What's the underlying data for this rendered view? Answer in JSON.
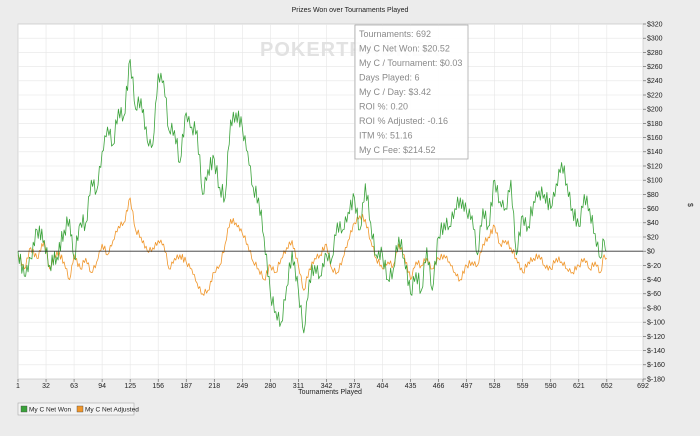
{
  "chart_data": {
    "type": "line",
    "title": "Prizes Won over Tournaments Played",
    "xlabel": "Tournaments Played",
    "ylabel": "$",
    "xlim": [
      1,
      692
    ],
    "ylim": [
      -180,
      320
    ],
    "x_ticks": [
      1,
      32,
      63,
      94,
      125,
      156,
      187,
      218,
      249,
      280,
      311,
      342,
      373,
      404,
      435,
      466,
      497,
      528,
      559,
      590,
      621,
      652,
      692
    ],
    "y_ticks": [
      {
        "v": 320,
        "label": "$320"
      },
      {
        "v": 300,
        "label": "$300"
      },
      {
        "v": 280,
        "label": "$280"
      },
      {
        "v": 260,
        "label": "$260"
      },
      {
        "v": 240,
        "label": "$240"
      },
      {
        "v": 220,
        "label": "$220"
      },
      {
        "v": 200,
        "label": "$200"
      },
      {
        "v": 180,
        "label": "$180"
      },
      {
        "v": 160,
        "label": "$160"
      },
      {
        "v": 140,
        "label": "$140"
      },
      {
        "v": 120,
        "label": "$120"
      },
      {
        "v": 100,
        "label": "$100"
      },
      {
        "v": 80,
        "label": "$80"
      },
      {
        "v": 60,
        "label": "$60"
      },
      {
        "v": 40,
        "label": "$40"
      },
      {
        "v": 20,
        "label": "$20"
      },
      {
        "v": 0,
        "label": "$0"
      },
      {
        "v": -20,
        "label": "$-20"
      },
      {
        "v": -40,
        "label": "$-40"
      },
      {
        "v": -60,
        "label": "$-60"
      },
      {
        "v": -80,
        "label": "$-80"
      },
      {
        "v": -100,
        "label": "$-100"
      },
      {
        "v": -120,
        "label": "$-120"
      },
      {
        "v": -140,
        "label": "$-140"
      },
      {
        "v": -160,
        "label": "$-160"
      },
      {
        "v": -180,
        "label": "$-180"
      }
    ],
    "grid": true,
    "legend_position": "bottom-left",
    "series": [
      {
        "name": "My C Net Won",
        "color": "#3aa23a",
        "points": [
          [
            1,
            0
          ],
          [
            8,
            -35
          ],
          [
            15,
            -10
          ],
          [
            22,
            30
          ],
          [
            30,
            15
          ],
          [
            36,
            -20
          ],
          [
            44,
            -8
          ],
          [
            52,
            30
          ],
          [
            58,
            45
          ],
          [
            63,
            -10
          ],
          [
            70,
            40
          ],
          [
            76,
            40
          ],
          [
            82,
            100
          ],
          [
            88,
            85
          ],
          [
            94,
            140
          ],
          [
            100,
            175
          ],
          [
            106,
            150
          ],
          [
            112,
            200
          ],
          [
            118,
            190
          ],
          [
            125,
            270
          ],
          [
            131,
            200
          ],
          [
            137,
            215
          ],
          [
            144,
            155
          ],
          [
            150,
            150
          ],
          [
            156,
            250
          ],
          [
            162,
            240
          ],
          [
            168,
            170
          ],
          [
            174,
            170
          ],
          [
            180,
            125
          ],
          [
            187,
            195
          ],
          [
            193,
            175
          ],
          [
            199,
            170
          ],
          [
            205,
            80
          ],
          [
            211,
            115
          ],
          [
            218,
            130
          ],
          [
            224,
            90
          ],
          [
            230,
            75
          ],
          [
            236,
            185
          ],
          [
            242,
            195
          ],
          [
            249,
            175
          ],
          [
            255,
            140
          ],
          [
            261,
            90
          ],
          [
            267,
            75
          ],
          [
            273,
            20
          ],
          [
            280,
            -60
          ],
          [
            286,
            -85
          ],
          [
            292,
            -100
          ],
          [
            298,
            -50
          ],
          [
            304,
            0
          ],
          [
            311,
            -55
          ],
          [
            317,
            -115
          ],
          [
            323,
            -40
          ],
          [
            329,
            -20
          ],
          [
            335,
            -35
          ],
          [
            342,
            -5
          ],
          [
            348,
            -10
          ],
          [
            354,
            40
          ],
          [
            360,
            30
          ],
          [
            366,
            55
          ],
          [
            373,
            75
          ],
          [
            379,
            30
          ],
          [
            385,
            95
          ],
          [
            391,
            40
          ],
          [
            397,
            -5
          ],
          [
            404,
            -5
          ],
          [
            410,
            -40
          ],
          [
            416,
            -25
          ],
          [
            422,
            20
          ],
          [
            428,
            -10
          ],
          [
            435,
            -60
          ],
          [
            441,
            -30
          ],
          [
            447,
            -55
          ],
          [
            453,
            5
          ],
          [
            459,
            -55
          ],
          [
            466,
            20
          ],
          [
            472,
            40
          ],
          [
            478,
            35
          ],
          [
            484,
            60
          ],
          [
            490,
            75
          ],
          [
            497,
            55
          ],
          [
            503,
            50
          ],
          [
            509,
            -5
          ],
          [
            515,
            60
          ],
          [
            521,
            35
          ],
          [
            528,
            100
          ],
          [
            534,
            70
          ],
          [
            540,
            60
          ],
          [
            546,
            100
          ],
          [
            552,
            -5
          ],
          [
            559,
            50
          ],
          [
            565,
            35
          ],
          [
            571,
            70
          ],
          [
            577,
            85
          ],
          [
            583,
            80
          ],
          [
            590,
            60
          ],
          [
            596,
            95
          ],
          [
            602,
            125
          ],
          [
            608,
            95
          ],
          [
            614,
            60
          ],
          [
            621,
            35
          ],
          [
            627,
            80
          ],
          [
            633,
            60
          ],
          [
            639,
            25
          ],
          [
            645,
            -10
          ],
          [
            649,
            15
          ],
          [
            652,
            0
          ]
        ]
      },
      {
        "name": "My C Net Adjusted",
        "color": "#f0962a",
        "points": [
          [
            1,
            -5
          ],
          [
            8,
            -25
          ],
          [
            15,
            5
          ],
          [
            22,
            -10
          ],
          [
            30,
            15
          ],
          [
            36,
            -25
          ],
          [
            44,
            0
          ],
          [
            52,
            -15
          ],
          [
            58,
            -40
          ],
          [
            63,
            -5
          ],
          [
            70,
            -25
          ],
          [
            76,
            -10
          ],
          [
            82,
            -30
          ],
          [
            88,
            -15
          ],
          [
            94,
            10
          ],
          [
            100,
            -5
          ],
          [
            106,
            15
          ],
          [
            112,
            35
          ],
          [
            118,
            40
          ],
          [
            125,
            75
          ],
          [
            131,
            30
          ],
          [
            137,
            20
          ],
          [
            144,
            0
          ],
          [
            150,
            5
          ],
          [
            156,
            15
          ],
          [
            162,
            10
          ],
          [
            168,
            -25
          ],
          [
            174,
            -10
          ],
          [
            180,
            -5
          ],
          [
            187,
            -15
          ],
          [
            193,
            -25
          ],
          [
            199,
            -45
          ],
          [
            205,
            -60
          ],
          [
            211,
            -55
          ],
          [
            218,
            -30
          ],
          [
            224,
            -20
          ],
          [
            230,
            10
          ],
          [
            236,
            45
          ],
          [
            242,
            40
          ],
          [
            249,
            25
          ],
          [
            255,
            10
          ],
          [
            261,
            -15
          ],
          [
            267,
            -25
          ],
          [
            273,
            -40
          ],
          [
            280,
            -20
          ],
          [
            286,
            -30
          ],
          [
            292,
            -10
          ],
          [
            298,
            5
          ],
          [
            304,
            15
          ],
          [
            311,
            -20
          ],
          [
            317,
            -55
          ],
          [
            323,
            -25
          ],
          [
            329,
            -10
          ],
          [
            335,
            -5
          ],
          [
            342,
            10
          ],
          [
            348,
            -25
          ],
          [
            354,
            -30
          ],
          [
            360,
            -10
          ],
          [
            366,
            15
          ],
          [
            373,
            40
          ],
          [
            379,
            50
          ],
          [
            385,
            45
          ],
          [
            391,
            15
          ],
          [
            397,
            -10
          ],
          [
            404,
            -25
          ],
          [
            410,
            -15
          ],
          [
            416,
            -20
          ],
          [
            422,
            10
          ],
          [
            428,
            -5
          ],
          [
            435,
            -40
          ],
          [
            441,
            -15
          ],
          [
            447,
            -20
          ],
          [
            453,
            -10
          ],
          [
            459,
            -25
          ],
          [
            466,
            -10
          ],
          [
            472,
            -5
          ],
          [
            478,
            -15
          ],
          [
            484,
            -30
          ],
          [
            490,
            -40
          ],
          [
            497,
            -20
          ],
          [
            503,
            -15
          ],
          [
            509,
            -20
          ],
          [
            515,
            10
          ],
          [
            521,
            20
          ],
          [
            528,
            35
          ],
          [
            534,
            10
          ],
          [
            540,
            15
          ],
          [
            546,
            5
          ],
          [
            552,
            -10
          ],
          [
            559,
            -30
          ],
          [
            565,
            -15
          ],
          [
            571,
            -10
          ],
          [
            577,
            -5
          ],
          [
            583,
            -20
          ],
          [
            590,
            -25
          ],
          [
            596,
            -10
          ],
          [
            602,
            -15
          ],
          [
            608,
            -25
          ],
          [
            614,
            -30
          ],
          [
            621,
            -20
          ],
          [
            627,
            -10
          ],
          [
            633,
            -25
          ],
          [
            639,
            -15
          ],
          [
            645,
            -30
          ],
          [
            649,
            -5
          ],
          [
            652,
            -10
          ]
        ]
      }
    ]
  },
  "stats_box": {
    "lines": [
      "Tournaments: 692",
      "My C Net Won: $20.52",
      "My C / Tournament: $0.03",
      "Days Played: 6",
      "My C / Day: $3.42",
      "ROI %: 0.20",
      "ROI % Adjusted: -0.16",
      "ITM %: 51.16",
      "My C Fee: $214.52"
    ]
  },
  "watermark": "POKERTRACKER",
  "legend": [
    {
      "label": "My C Net Won",
      "color": "#3aa23a"
    },
    {
      "label": "My C Net Adjusted",
      "color": "#f0962a"
    }
  ]
}
